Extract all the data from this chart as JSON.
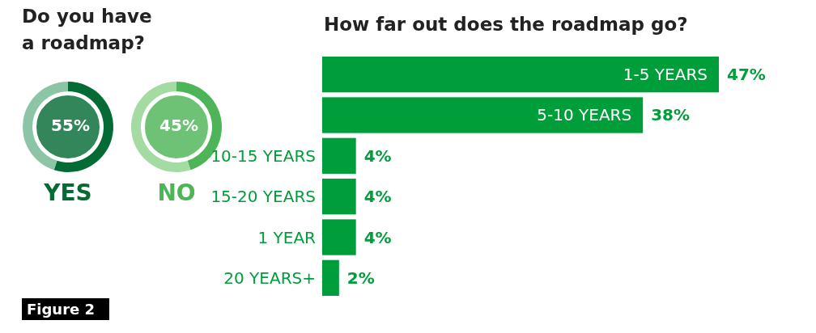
{
  "chart_data": [
    {
      "type": "donut",
      "title": "Do you have a roadmap?",
      "categories": [
        "YES",
        null
      ],
      "values": [
        55,
        45
      ],
      "colors": [
        "#056b35",
        "#8cc5a6"
      ],
      "value_labels": [
        "55%",
        null
      ],
      "annotations": [
        "Figure 2"
      ]
    },
    {
      "type": "donut",
      "categories": [
        "NO",
        null
      ],
      "values": [
        45,
        55
      ],
      "colors": [
        "#4db557",
        "#a3dba3"
      ],
      "value_labels": [
        "45%",
        null
      ]
    },
    {
      "type": "bar",
      "orientation": "horizontal",
      "title": "How far out does the roadmap go?",
      "categories": [
        "1-5 YEARS",
        "5-10 YEARS",
        "10-15 YEARS",
        "15-20 YEARS",
        "1 YEAR",
        "20 YEARS+"
      ],
      "values": [
        47,
        38,
        4,
        4,
        4,
        2
      ],
      "color": "#009e3b",
      "value_labels": [
        "47%",
        "38%",
        "4%",
        "4%",
        "4%",
        "2%"
      ]
    }
  ]
}
